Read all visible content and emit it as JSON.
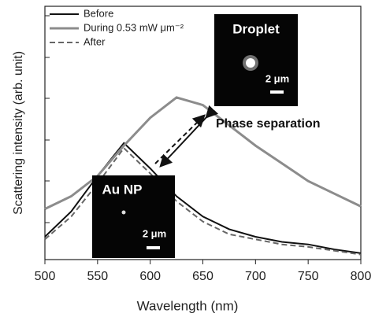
{
  "chart_data": {
    "type": "line",
    "x_label": "Wavelength (nm)",
    "y_label": "Scattering intensity (arb. unit)",
    "x": [
      500,
      525,
      550,
      575,
      600,
      625,
      650,
      675,
      700,
      725,
      750,
      775,
      800
    ],
    "series": [
      {
        "name": "Before",
        "color": "#111111",
        "dash": "solid",
        "values": [
          0.09,
          0.19,
          0.33,
          0.46,
          0.36,
          0.25,
          0.17,
          0.12,
          0.09,
          0.07,
          0.06,
          0.04,
          0.025
        ]
      },
      {
        "name": "During 0.53 mW μm⁻²",
        "color": "#8c8c8c",
        "dash": "solid",
        "values": [
          0.2,
          0.25,
          0.33,
          0.45,
          0.56,
          0.64,
          0.61,
          0.53,
          0.45,
          0.38,
          0.31,
          0.26,
          0.21
        ]
      },
      {
        "name": "After",
        "color": "#666666",
        "dash": "dashed",
        "values": [
          0.08,
          0.17,
          0.3,
          0.44,
          0.34,
          0.23,
          0.15,
          0.1,
          0.08,
          0.06,
          0.05,
          0.035,
          0.02
        ]
      }
    ],
    "xlim": [
      500,
      800
    ],
    "xticks": [
      500,
      550,
      600,
      650,
      700,
      750,
      800
    ],
    "ylim": [
      0,
      1
    ],
    "annotations": [
      "Phase separation"
    ],
    "insets": [
      {
        "title": "Droplet",
        "scale_bar": "2 μm"
      },
      {
        "title": "Au NP",
        "scale_bar": "2 μm"
      }
    ]
  }
}
